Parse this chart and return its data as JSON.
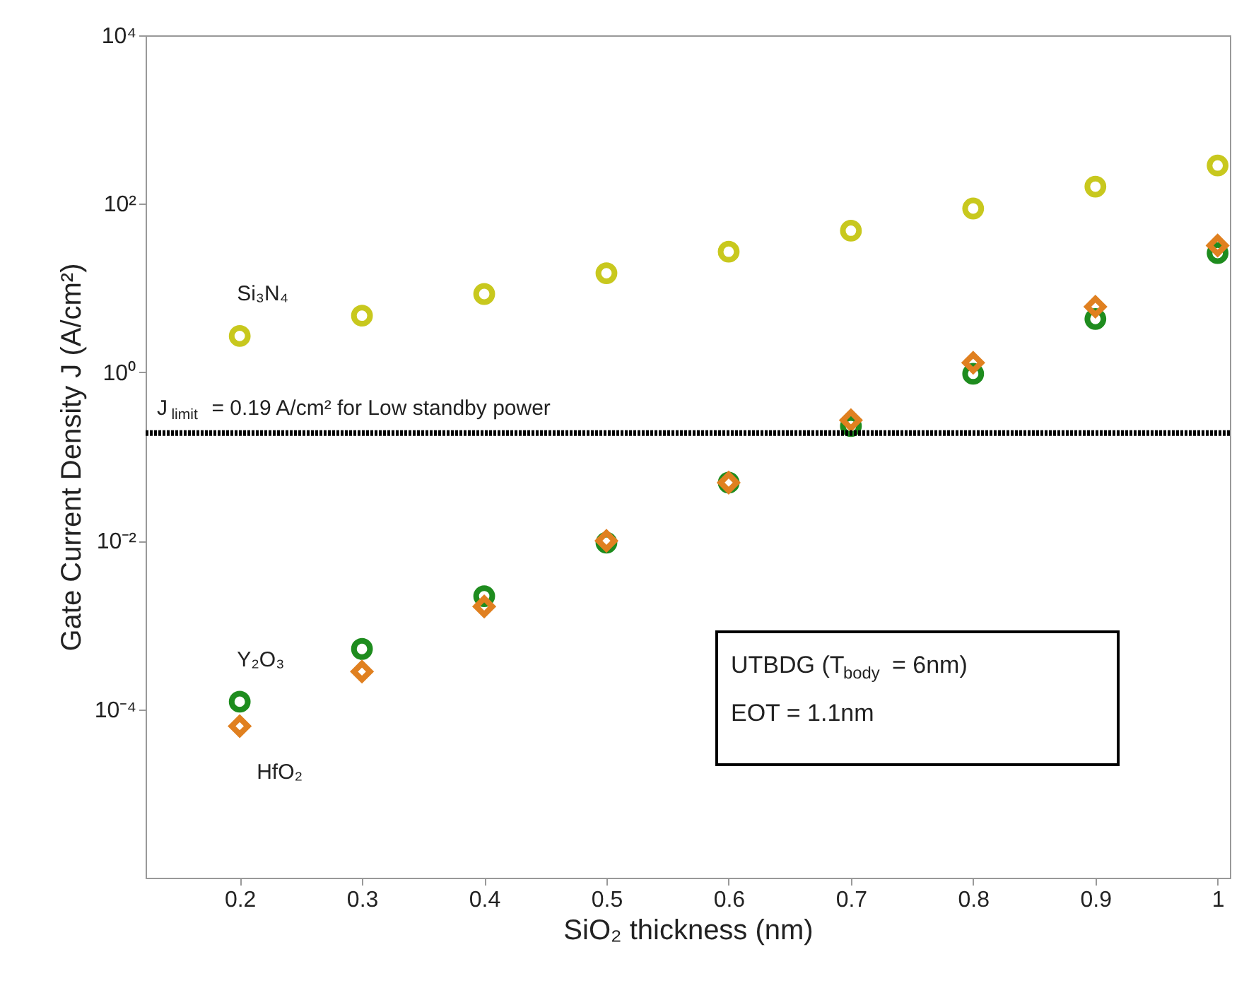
{
  "chart_data": {
    "type": "scatter",
    "xlabel": "SiO₂ thickness  (nm)",
    "ylabel": "Gate Current Density  J (A/cm²)",
    "x": [
      0.2,
      0.3,
      0.4,
      0.5,
      0.6,
      0.7,
      0.8,
      0.9,
      1.0
    ],
    "series": [
      {
        "name": "Si₃N₄",
        "color": "#c8c81e",
        "values": [
          2.7,
          4.7,
          8.5,
          15,
          27,
          48,
          88,
          160,
          285
        ]
      },
      {
        "name": "Y₂O₃",
        "color": "#1e8c1e",
        "values": [
          0.000123,
          0.00052,
          0.0022,
          0.0095,
          0.049,
          0.23,
          0.96,
          4.3,
          26
        ]
      },
      {
        "name": "HfO₂",
        "color": "#e08020",
        "marker": "diamond",
        "values": [
          6.3e-05,
          0.00028,
          0.00166,
          0.01,
          0.049,
          0.27,
          1.3,
          6.0,
          32
        ]
      }
    ],
    "log": "y",
    "marker": "circle",
    "grid": false,
    "legend": false,
    "xlim": [
      0.123,
      1.01
    ],
    "ylim": [
      1e-06,
      10000
    ],
    "xticks": [
      0.2,
      0.3,
      0.4,
      0.5,
      0.6,
      0.7,
      0.8,
      0.9,
      1
    ],
    "yticks": [
      {
        "value": 0.0001,
        "label": "10⁻⁴"
      },
      {
        "value": 0.01,
        "label": "10⁻²"
      },
      {
        "value": 1,
        "label": "10⁰"
      },
      {
        "value": 100,
        "label": "10²"
      },
      {
        "value": 10000,
        "label": "10⁴"
      }
    ],
    "ref_lines": [
      {
        "axis": "y",
        "value": 0.19,
        "label": "J$_{limit}$ = 0.19 A/cm² for Low standby power",
        "color": "#000000",
        "line_style": "dotted"
      }
    ],
    "annotations": [
      "UTBDG (T$_{body}$ = 6nm)",
      "EOT = 1.1nm"
    ]
  }
}
